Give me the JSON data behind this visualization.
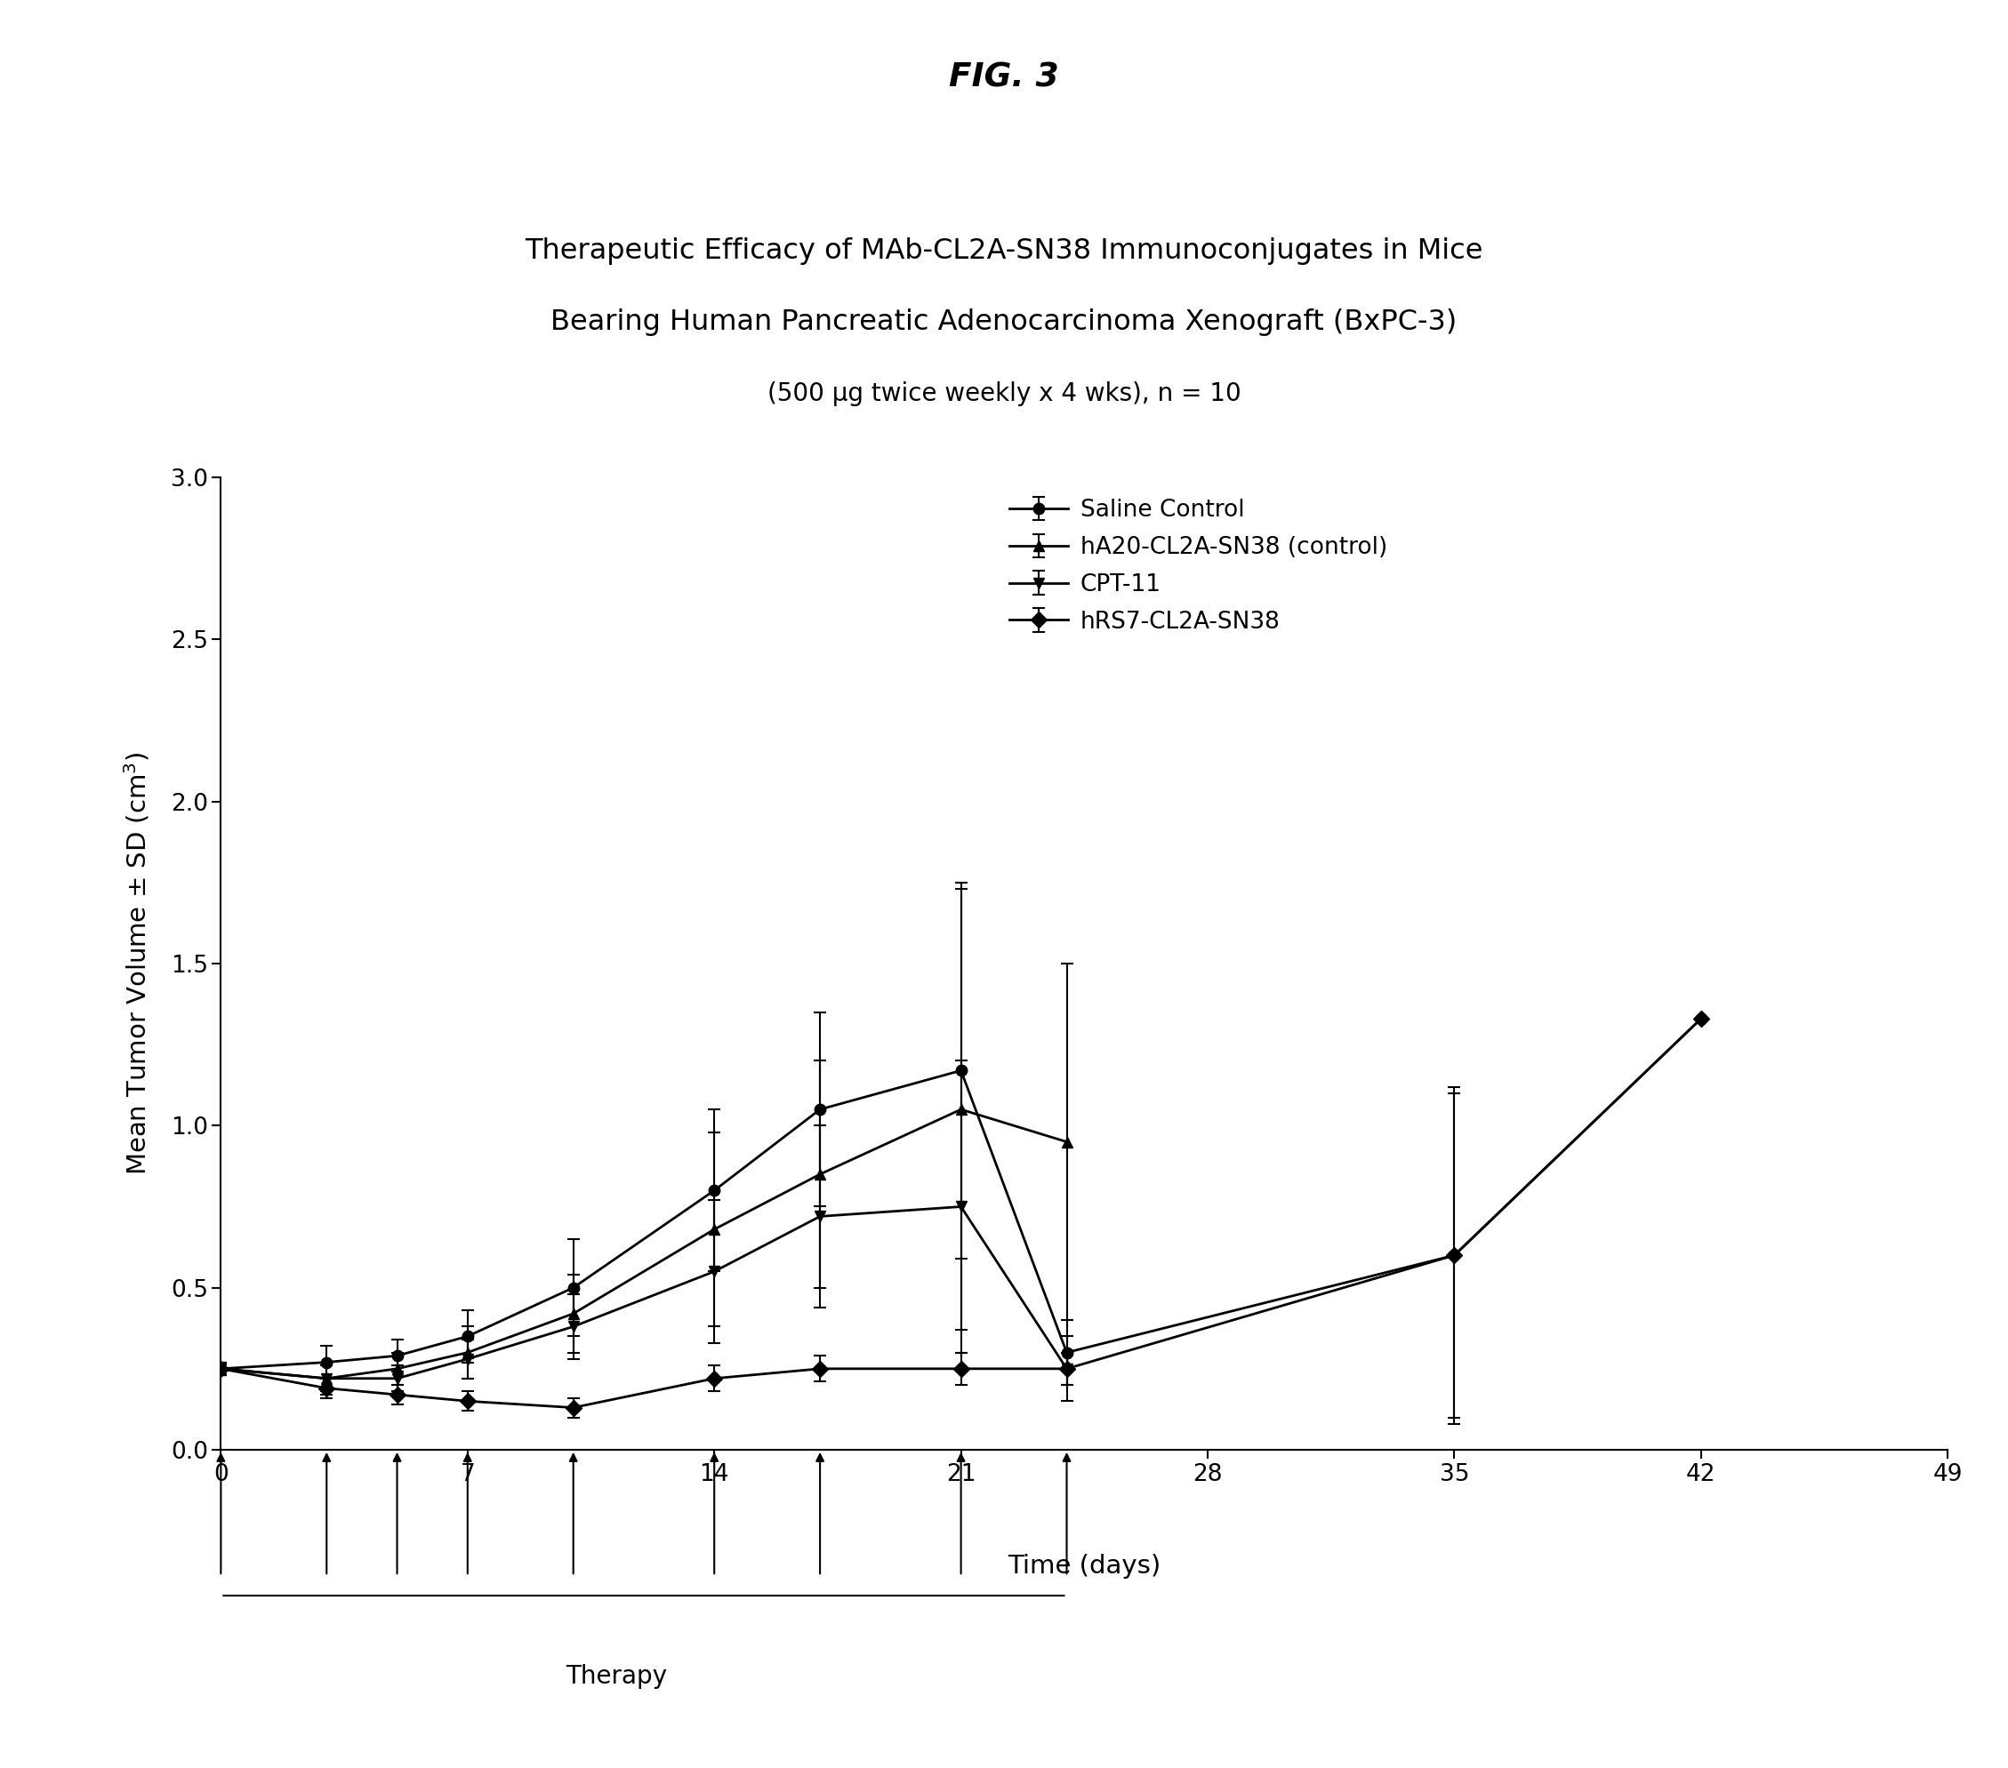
{
  "title_fig": "FIG. 3",
  "title_line1": "Therapeutic Efficacy of MAb-CL2A-SN38 Immunoconjugates in Mice",
  "title_line2": "Bearing Human Pancreatic Adenocarcinoma Xenograft (BxPC-3)",
  "title_line3": "(500 μg twice weekly x 4 wks), n = 10",
  "ylabel": "Mean Tumor Volume ± SD (cm$^3$)",
  "xlabel": "Time (days)",
  "xlim": [
    0,
    49
  ],
  "ylim": [
    0.0,
    3.0
  ],
  "xticks": [
    0,
    7,
    14,
    21,
    28,
    35,
    42,
    49
  ],
  "yticks": [
    0.0,
    0.5,
    1.0,
    1.5,
    2.0,
    2.5,
    3.0
  ],
  "series": [
    {
      "label": "Saline Control",
      "marker": "o",
      "x": [
        0,
        3,
        5,
        7,
        10,
        14,
        17,
        21,
        24,
        35,
        42
      ],
      "y": [
        0.25,
        0.27,
        0.29,
        0.35,
        0.5,
        0.8,
        1.05,
        1.17,
        0.3,
        0.6,
        1.33
      ],
      "yerr": [
        0.02,
        0.05,
        0.05,
        0.08,
        0.15,
        0.25,
        0.3,
        0.58,
        0.1,
        0.52,
        0.0
      ]
    },
    {
      "label": "hA20-CL2A-SN38 (control)",
      "marker": "^",
      "x": [
        0,
        3,
        5,
        7,
        10,
        14,
        17,
        21,
        24
      ],
      "y": [
        0.25,
        0.22,
        0.25,
        0.3,
        0.42,
        0.68,
        0.85,
        1.05,
        0.95
      ],
      "yerr": [
        0.02,
        0.05,
        0.05,
        0.08,
        0.12,
        0.3,
        0.35,
        0.68,
        0.55
      ]
    },
    {
      "label": "CPT-11",
      "marker": "v",
      "x": [
        0,
        3,
        5,
        7,
        10,
        14,
        17,
        21,
        24
      ],
      "y": [
        0.25,
        0.22,
        0.22,
        0.28,
        0.38,
        0.55,
        0.72,
        0.75,
        0.25
      ],
      "yerr": [
        0.02,
        0.04,
        0.04,
        0.06,
        0.1,
        0.22,
        0.28,
        0.45,
        0.1
      ]
    },
    {
      "label": "hRS7-CL2A-SN38",
      "marker": "D",
      "x": [
        0,
        3,
        5,
        7,
        10,
        14,
        17,
        21,
        24,
        35,
        42
      ],
      "y": [
        0.25,
        0.19,
        0.17,
        0.15,
        0.13,
        0.22,
        0.25,
        0.25,
        0.25,
        0.6,
        1.33
      ],
      "yerr": [
        0.02,
        0.03,
        0.03,
        0.03,
        0.03,
        0.04,
        0.04,
        0.05,
        0.05,
        0.5,
        0.0
      ]
    }
  ],
  "therapy_arrows_x": [
    0,
    3,
    5,
    7,
    10,
    14,
    17,
    21,
    24
  ],
  "therapy_label": "Therapy",
  "background_color": "#ffffff",
  "line_color": "#000000",
  "marker_size": 9,
  "linewidth": 2.0,
  "legend_fontsize": 19,
  "axis_fontsize": 21,
  "tick_fontsize": 19,
  "title_fontsize": 23,
  "fig_title_fontsize": 27
}
